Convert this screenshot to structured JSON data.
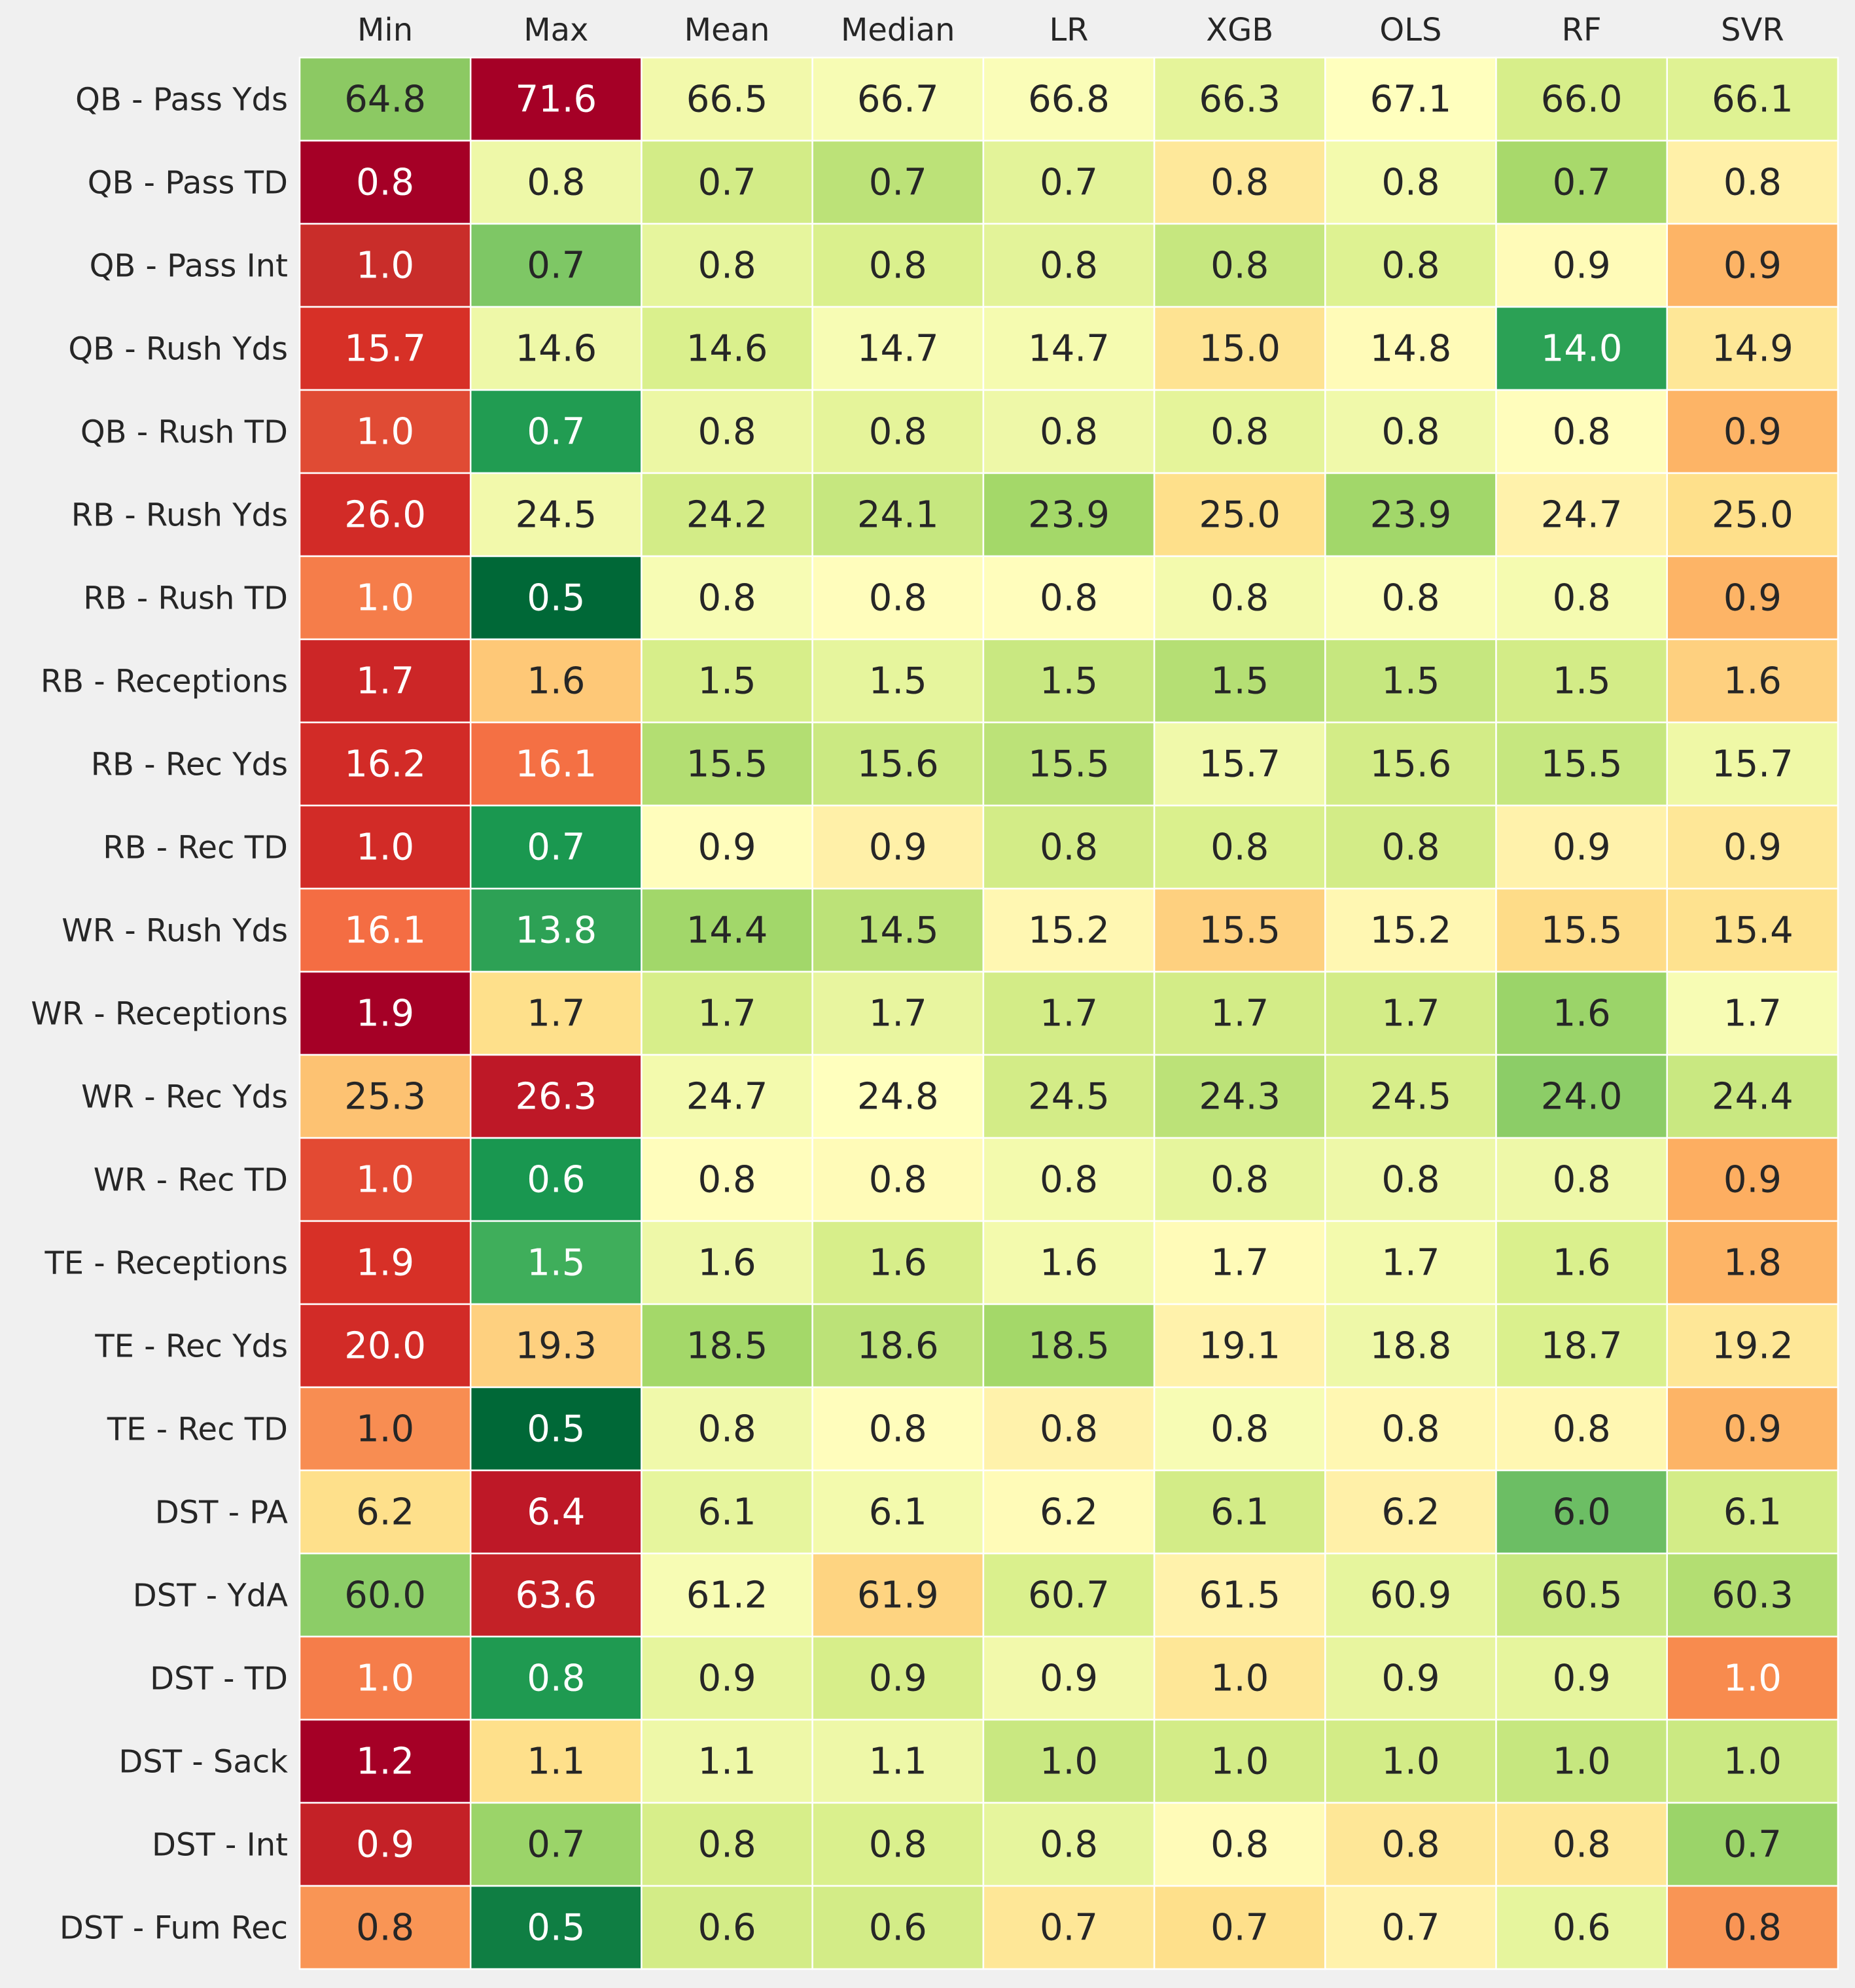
{
  "chart_data": {
    "type": "heatmap",
    "columns": [
      "Min",
      "Max",
      "Mean",
      "Median",
      "LR",
      "XGB",
      "OLS",
      "RF",
      "SVR"
    ],
    "rows": [
      "QB - Pass Yds",
      "QB - Pass TD",
      "QB - Pass Int",
      "QB - Rush Yds",
      "QB - Rush TD",
      "RB - Rush Yds",
      "RB - Rush TD",
      "RB - Receptions",
      "RB - Rec Yds",
      "RB - Rec TD",
      "WR - Rush Yds",
      "WR - Receptions",
      "WR - Rec Yds",
      "WR - Rec TD",
      "TE - Receptions",
      "TE - Rec Yds",
      "TE - Rec TD",
      "DST - PA",
      "DST - YdA",
      "DST - TD",
      "DST - Sack",
      "DST - Int",
      "DST - Fum Rec"
    ],
    "cells": [
      [
        {
          "t": "64.8",
          "c": "#8cc963",
          "w": false
        },
        {
          "t": "71.6",
          "c": "#a50026",
          "w": true
        },
        {
          "t": "66.5",
          "c": "#f2f9ab",
          "w": false
        },
        {
          "t": "66.7",
          "c": "#f7fcb4",
          "w": false
        },
        {
          "t": "66.8",
          "c": "#fafdb8",
          "w": false
        },
        {
          "t": "66.3",
          "c": "#e5f49a",
          "w": false
        },
        {
          "t": "67.1",
          "c": "#ffffbe",
          "w": false
        },
        {
          "t": "66.0",
          "c": "#d7ee8a",
          "w": false
        },
        {
          "t": "66.1",
          "c": "#dff293",
          "w": false
        }
      ],
      [
        {
          "t": "0.8",
          "c": "#a50026",
          "w": true
        },
        {
          "t": "0.8",
          "c": "#eef8a8",
          "w": false
        },
        {
          "t": "0.7",
          "c": "#d3ec87",
          "w": false
        },
        {
          "t": "0.7",
          "c": "#bce278",
          "w": false
        },
        {
          "t": "0.7",
          "c": "#e3f399",
          "w": false
        },
        {
          "t": "0.8",
          "c": "#fee89a",
          "w": false
        },
        {
          "t": "0.8",
          "c": "#f3faad",
          "w": false
        },
        {
          "t": "0.7",
          "c": "#a8d96b",
          "w": false
        },
        {
          "t": "0.8",
          "c": "#fff0a8",
          "w": false
        }
      ],
      [
        {
          "t": "1.0",
          "c": "#c92d2a",
          "w": true
        },
        {
          "t": "0.7",
          "c": "#7ec765",
          "w": false
        },
        {
          "t": "0.8",
          "c": "#e6f59d",
          "w": false
        },
        {
          "t": "0.8",
          "c": "#daf08d",
          "w": false
        },
        {
          "t": "0.8",
          "c": "#e3f399",
          "w": false
        },
        {
          "t": "0.8",
          "c": "#c6e77f",
          "w": false
        },
        {
          "t": "0.8",
          "c": "#def292",
          "w": false
        },
        {
          "t": "0.9",
          "c": "#fffbb8",
          "w": false
        },
        {
          "t": "0.9",
          "c": "#fdb466",
          "w": false
        }
      ],
      [
        {
          "t": "15.7",
          "c": "#d73027",
          "w": true
        },
        {
          "t": "14.6",
          "c": "#eef8a8",
          "w": false
        },
        {
          "t": "14.6",
          "c": "#daf08d",
          "w": false
        },
        {
          "t": "14.7",
          "c": "#f7fcb4",
          "w": false
        },
        {
          "t": "14.7",
          "c": "#f5fbb0",
          "w": false
        },
        {
          "t": "15.0",
          "c": "#fee392",
          "w": false
        },
        {
          "t": "14.8",
          "c": "#fffbb8",
          "w": false
        },
        {
          "t": "14.0",
          "c": "#2ba155",
          "w": true
        },
        {
          "t": "14.9",
          "c": "#fee797",
          "w": false
        }
      ],
      [
        {
          "t": "1.0",
          "c": "#e04b34",
          "w": true
        },
        {
          "t": "0.7",
          "c": "#219c52",
          "w": true
        },
        {
          "t": "0.8",
          "c": "#ecf7a4",
          "w": false
        },
        {
          "t": "0.8",
          "c": "#e5f49a",
          "w": false
        },
        {
          "t": "0.8",
          "c": "#eef8a8",
          "w": false
        },
        {
          "t": "0.8",
          "c": "#e5f49a",
          "w": false
        },
        {
          "t": "0.8",
          "c": "#f0f9aa",
          "w": false
        },
        {
          "t": "0.8",
          "c": "#fffdbc",
          "w": false
        },
        {
          "t": "0.9",
          "c": "#fdb466",
          "w": false
        }
      ],
      [
        {
          "t": "26.0",
          "c": "#d22b27",
          "w": true
        },
        {
          "t": "24.5",
          "c": "#f2f9ab",
          "w": false
        },
        {
          "t": "24.2",
          "c": "#d3ec87",
          "w": false
        },
        {
          "t": "24.1",
          "c": "#c6e77f",
          "w": false
        },
        {
          "t": "23.9",
          "c": "#a4d869",
          "w": false
        },
        {
          "t": "25.0",
          "c": "#fee08b",
          "w": false
        },
        {
          "t": "23.9",
          "c": "#a2d76a",
          "w": false
        },
        {
          "t": "24.7",
          "c": "#fff2ab",
          "w": false
        },
        {
          "t": "25.0",
          "c": "#fee08b",
          "w": false
        }
      ],
      [
        {
          "t": "1.0",
          "c": "#f57d4a",
          "w": true
        },
        {
          "t": "0.5",
          "c": "#006837",
          "w": true
        },
        {
          "t": "0.8",
          "c": "#f7fcb4",
          "w": false
        },
        {
          "t": "0.8",
          "c": "#fffdbc",
          "w": false
        },
        {
          "t": "0.8",
          "c": "#fffdbc",
          "w": false
        },
        {
          "t": "0.8",
          "c": "#f3faad",
          "w": false
        },
        {
          "t": "0.8",
          "c": "#fafdb8",
          "w": false
        },
        {
          "t": "0.8",
          "c": "#f5fbb0",
          "w": false
        },
        {
          "t": "0.9",
          "c": "#fdb466",
          "w": false
        }
      ],
      [
        {
          "t": "1.7",
          "c": "#cc2627",
          "w": true
        },
        {
          "t": "1.6",
          "c": "#fec877",
          "w": false
        },
        {
          "t": "1.5",
          "c": "#d7ee8a",
          "w": false
        },
        {
          "t": "1.5",
          "c": "#e6f59d",
          "w": false
        },
        {
          "t": "1.5",
          "c": "#c9e881",
          "w": false
        },
        {
          "t": "1.5",
          "c": "#b5df74",
          "w": false
        },
        {
          "t": "1.5",
          "c": "#c6e77f",
          "w": false
        },
        {
          "t": "1.5",
          "c": "#d3ec87",
          "w": false
        },
        {
          "t": "1.6",
          "c": "#fed07f",
          "w": false
        }
      ],
      [
        {
          "t": "16.2",
          "c": "#d22b27",
          "w": true
        },
        {
          "t": "16.1",
          "c": "#f47044",
          "w": true
        },
        {
          "t": "15.5",
          "c": "#b3de72",
          "w": false
        },
        {
          "t": "15.6",
          "c": "#cbe982",
          "w": false
        },
        {
          "t": "15.5",
          "c": "#bce278",
          "w": false
        },
        {
          "t": "15.7",
          "c": "#f0f9aa",
          "w": false
        },
        {
          "t": "15.6",
          "c": "#d3ec87",
          "w": false
        },
        {
          "t": "15.5",
          "c": "#c6e77f",
          "w": false
        },
        {
          "t": "15.7",
          "c": "#eff8a6",
          "w": false
        }
      ],
      [
        {
          "t": "1.0",
          "c": "#d22b27",
          "w": true
        },
        {
          "t": "0.7",
          "c": "#1a9850",
          "w": true
        },
        {
          "t": "0.9",
          "c": "#fffdbc",
          "w": false
        },
        {
          "t": "0.9",
          "c": "#fff0a8",
          "w": false
        },
        {
          "t": "0.8",
          "c": "#d3ec87",
          "w": false
        },
        {
          "t": "0.8",
          "c": "#daf08d",
          "w": false
        },
        {
          "t": "0.8",
          "c": "#d3ec87",
          "w": false
        },
        {
          "t": "0.9",
          "c": "#fff2ab",
          "w": false
        },
        {
          "t": "0.9",
          "c": "#fee797",
          "w": false
        }
      ],
      [
        {
          "t": "16.1",
          "c": "#f46d43",
          "w": true
        },
        {
          "t": "13.8",
          "c": "#2da155",
          "w": true
        },
        {
          "t": "14.4",
          "c": "#a2d76a",
          "w": false
        },
        {
          "t": "14.5",
          "c": "#bce278",
          "w": false
        },
        {
          "t": "15.2",
          "c": "#fff7b2",
          "w": false
        },
        {
          "t": "15.5",
          "c": "#fed07f",
          "w": false
        },
        {
          "t": "15.2",
          "c": "#fff7b2",
          "w": false
        },
        {
          "t": "15.5",
          "c": "#fedc88",
          "w": false
        },
        {
          "t": "15.4",
          "c": "#fee28f",
          "w": false
        }
      ],
      [
        {
          "t": "1.9",
          "c": "#a50026",
          "w": true
        },
        {
          "t": "1.7",
          "c": "#fee08b",
          "w": false
        },
        {
          "t": "1.7",
          "c": "#d7ee8a",
          "w": false
        },
        {
          "t": "1.7",
          "c": "#e8f59f",
          "w": false
        },
        {
          "t": "1.7",
          "c": "#d3ec87",
          "w": false
        },
        {
          "t": "1.7",
          "c": "#d3ec87",
          "w": false
        },
        {
          "t": "1.7",
          "c": "#d3ec87",
          "w": false
        },
        {
          "t": "1.6",
          "c": "#9bd469",
          "w": false
        },
        {
          "t": "1.7",
          "c": "#f7fcb4",
          "w": false
        }
      ],
      [
        {
          "t": "25.3",
          "c": "#fdc272",
          "w": false
        },
        {
          "t": "26.3",
          "c": "#be1827",
          "w": true
        },
        {
          "t": "24.7",
          "c": "#f3faad",
          "w": false
        },
        {
          "t": "24.8",
          "c": "#ffffbe",
          "w": false
        },
        {
          "t": "24.5",
          "c": "#d3ec87",
          "w": false
        },
        {
          "t": "24.3",
          "c": "#bce278",
          "w": false
        },
        {
          "t": "24.5",
          "c": "#d7ee8a",
          "w": false
        },
        {
          "t": "24.0",
          "c": "#8ccd67",
          "w": false
        },
        {
          "t": "24.4",
          "c": "#c9e881",
          "w": false
        }
      ],
      [
        {
          "t": "1.0",
          "c": "#e34a33",
          "w": true
        },
        {
          "t": "0.6",
          "c": "#199750",
          "w": true
        },
        {
          "t": "0.8",
          "c": "#fffdbc",
          "w": false
        },
        {
          "t": "0.8",
          "c": "#fffbb8",
          "w": false
        },
        {
          "t": "0.8",
          "c": "#f3faad",
          "w": false
        },
        {
          "t": "0.8",
          "c": "#e6f59d",
          "w": false
        },
        {
          "t": "0.8",
          "c": "#eef8a8",
          "w": false
        },
        {
          "t": "0.8",
          "c": "#eef8a8",
          "w": false
        },
        {
          "t": "0.9",
          "c": "#fdae61",
          "w": false
        }
      ],
      [
        {
          "t": "1.9",
          "c": "#d73027",
          "w": true
        },
        {
          "t": "1.5",
          "c": "#3fae5b",
          "w": true
        },
        {
          "t": "1.6",
          "c": "#eef8a8",
          "w": false
        },
        {
          "t": "1.6",
          "c": "#d7ee8a",
          "w": false
        },
        {
          "t": "1.6",
          "c": "#f3faad",
          "w": false
        },
        {
          "t": "1.7",
          "c": "#fffbb8",
          "w": false
        },
        {
          "t": "1.7",
          "c": "#f3faad",
          "w": false
        },
        {
          "t": "1.6",
          "c": "#daf08d",
          "w": false
        },
        {
          "t": "1.8",
          "c": "#fdb466",
          "w": false
        }
      ],
      [
        {
          "t": "20.0",
          "c": "#d22b27",
          "w": true
        },
        {
          "t": "19.3",
          "c": "#fed07f",
          "w": false
        },
        {
          "t": "18.5",
          "c": "#a4d869",
          "w": false
        },
        {
          "t": "18.6",
          "c": "#bce278",
          "w": false
        },
        {
          "t": "18.5",
          "c": "#a4d869",
          "w": false
        },
        {
          "t": "19.1",
          "c": "#fff2ab",
          "w": false
        },
        {
          "t": "18.8",
          "c": "#eef8a8",
          "w": false
        },
        {
          "t": "18.7",
          "c": "#daf08d",
          "w": false
        },
        {
          "t": "19.2",
          "c": "#fee797",
          "w": false
        }
      ],
      [
        {
          "t": "1.0",
          "c": "#f88d52",
          "w": false
        },
        {
          "t": "0.5",
          "c": "#006837",
          "w": true
        },
        {
          "t": "0.8",
          "c": "#f0f9aa",
          "w": false
        },
        {
          "t": "0.8",
          "c": "#fffdbc",
          "w": false
        },
        {
          "t": "0.8",
          "c": "#fff2ab",
          "w": false
        },
        {
          "t": "0.8",
          "c": "#f7fcb4",
          "w": false
        },
        {
          "t": "0.8",
          "c": "#fff7b2",
          "w": false
        },
        {
          "t": "0.8",
          "c": "#fff7b2",
          "w": false
        },
        {
          "t": "0.9",
          "c": "#fdb466",
          "w": false
        }
      ],
      [
        {
          "t": "6.2",
          "c": "#fee08b",
          "w": false
        },
        {
          "t": "6.4",
          "c": "#be1827",
          "w": true
        },
        {
          "t": "6.1",
          "c": "#e6f59d",
          "w": false
        },
        {
          "t": "6.1",
          "c": "#f3faad",
          "w": false
        },
        {
          "t": "6.2",
          "c": "#fffbb8",
          "w": false
        },
        {
          "t": "6.1",
          "c": "#d3ec87",
          "w": false
        },
        {
          "t": "6.2",
          "c": "#fff0a8",
          "w": false
        },
        {
          "t": "6.0",
          "c": "#6cbe64",
          "w": false
        },
        {
          "t": "6.1",
          "c": "#d3ec87",
          "w": false
        }
      ],
      [
        {
          "t": "60.0",
          "c": "#8ccd67",
          "w": false
        },
        {
          "t": "63.6",
          "c": "#c42127",
          "w": true
        },
        {
          "t": "61.2",
          "c": "#f7fcb4",
          "w": false
        },
        {
          "t": "61.9",
          "c": "#fed481",
          "w": false
        },
        {
          "t": "60.7",
          "c": "#daf08d",
          "w": false
        },
        {
          "t": "61.5",
          "c": "#fff2ab",
          "w": false
        },
        {
          "t": "60.9",
          "c": "#e6f59d",
          "w": false
        },
        {
          "t": "60.5",
          "c": "#c9e881",
          "w": false
        },
        {
          "t": "60.3",
          "c": "#b3de72",
          "w": false
        }
      ],
      [
        {
          "t": "1.0",
          "c": "#f57d4a",
          "w": true
        },
        {
          "t": "0.8",
          "c": "#1f9a51",
          "w": true
        },
        {
          "t": "0.9",
          "c": "#e6f59d",
          "w": false
        },
        {
          "t": "0.9",
          "c": "#d7ee8a",
          "w": false
        },
        {
          "t": "0.9",
          "c": "#f2f9ab",
          "w": false
        },
        {
          "t": "1.0",
          "c": "#fee797",
          "w": false
        },
        {
          "t": "0.9",
          "c": "#e8f59f",
          "w": false
        },
        {
          "t": "0.9",
          "c": "#e6f59d",
          "w": false
        },
        {
          "t": "1.0",
          "c": "#f88b4e",
          "w": true
        }
      ],
      [
        {
          "t": "1.2",
          "c": "#a50026",
          "w": true
        },
        {
          "t": "1.1",
          "c": "#fee08b",
          "w": false
        },
        {
          "t": "1.1",
          "c": "#eef8a8",
          "w": false
        },
        {
          "t": "1.1",
          "c": "#eef8a8",
          "w": false
        },
        {
          "t": "1.0",
          "c": "#c9e881",
          "w": false
        },
        {
          "t": "1.0",
          "c": "#d3ec87",
          "w": false
        },
        {
          "t": "1.0",
          "c": "#d3ec87",
          "w": false
        },
        {
          "t": "1.0",
          "c": "#c6e77f",
          "w": false
        },
        {
          "t": "1.0",
          "c": "#cbe982",
          "w": false
        }
      ],
      [
        {
          "t": "0.9",
          "c": "#c42127",
          "w": true
        },
        {
          "t": "0.7",
          "c": "#9bd469",
          "w": false
        },
        {
          "t": "0.8",
          "c": "#d7ee8a",
          "w": false
        },
        {
          "t": "0.8",
          "c": "#daf08d",
          "w": false
        },
        {
          "t": "0.8",
          "c": "#e6f59d",
          "w": false
        },
        {
          "t": "0.8",
          "c": "#fffbb8",
          "w": false
        },
        {
          "t": "0.8",
          "c": "#fee797",
          "w": false
        },
        {
          "t": "0.8",
          "c": "#fee797",
          "w": false
        },
        {
          "t": "0.7",
          "c": "#9bd469",
          "w": false
        }
      ],
      [
        {
          "t": "0.8",
          "c": "#f99555",
          "w": false
        },
        {
          "t": "0.5",
          "c": "#0f7e43",
          "w": true
        },
        {
          "t": "0.6",
          "c": "#d3ec87",
          "w": false
        },
        {
          "t": "0.6",
          "c": "#d3ec87",
          "w": false
        },
        {
          "t": "0.7",
          "c": "#fee797",
          "w": false
        },
        {
          "t": "0.7",
          "c": "#fee08b",
          "w": false
        },
        {
          "t": "0.7",
          "c": "#fff2ab",
          "w": false
        },
        {
          "t": "0.6",
          "c": "#e6f59d",
          "w": false
        },
        {
          "t": "0.8",
          "c": "#f99555",
          "w": false
        }
      ]
    ]
  }
}
